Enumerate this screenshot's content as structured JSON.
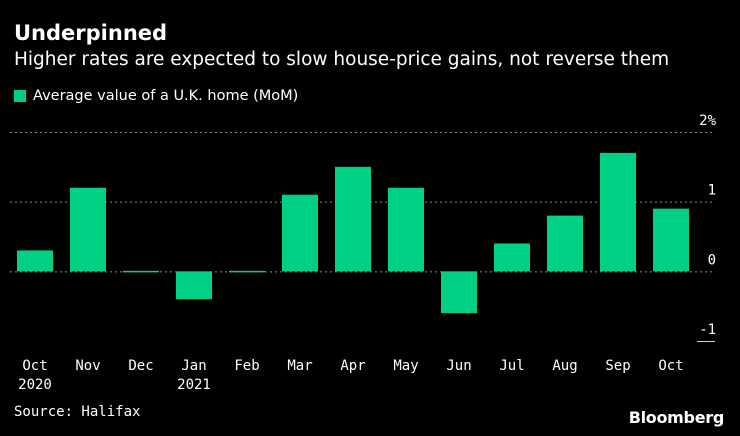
{
  "title": "Underpinned",
  "subtitle": "Higher rates are expected to slow house-price gains, not reverse them",
  "source": "Source: Halifax",
  "brand": "Bloomberg",
  "colors": {
    "bar": "#00d084",
    "grid": "#8a8a8a",
    "text": "#ffffff",
    "background": "#000000"
  },
  "chart_data": {
    "type": "bar",
    "title": "Underpinned",
    "subtitle": "Higher rates are expected to slow house-price gains, not reverse them",
    "categories": [
      "Oct 2020",
      "Nov",
      "Dec",
      "Jan 2021",
      "Feb",
      "Mar",
      "Apr",
      "May",
      "Jun",
      "Jul",
      "Aug",
      "Sep",
      "Oct"
    ],
    "x_tick_labels": [
      [
        "Oct",
        "2020"
      ],
      [
        "Nov",
        ""
      ],
      [
        "Dec",
        ""
      ],
      [
        "Jan",
        "2021"
      ],
      [
        "Feb",
        ""
      ],
      [
        "Mar",
        ""
      ],
      [
        "Apr",
        ""
      ],
      [
        "May",
        ""
      ],
      [
        "Jun",
        ""
      ],
      [
        "Jul",
        ""
      ],
      [
        "Aug",
        ""
      ],
      [
        "Sep",
        ""
      ],
      [
        "Oct",
        ""
      ]
    ],
    "series": [
      {
        "name": "Average value of a U.K. home (MoM)",
        "values": [
          0.3,
          1.2,
          0.0,
          -0.4,
          0.0,
          1.1,
          1.5,
          1.2,
          -0.6,
          0.4,
          0.8,
          1.7,
          0.9
        ]
      }
    ],
    "ylim": [
      -1,
      2
    ],
    "y_ticks": [
      {
        "value": 2,
        "label": "2%"
      },
      {
        "value": 1,
        "label": "1"
      },
      {
        "value": 0,
        "label": "0"
      },
      {
        "value": -1,
        "label": "-1"
      }
    ],
    "xlabel": "",
    "ylabel": "",
    "grid": "dotted horizontal",
    "legend": "top-left"
  }
}
